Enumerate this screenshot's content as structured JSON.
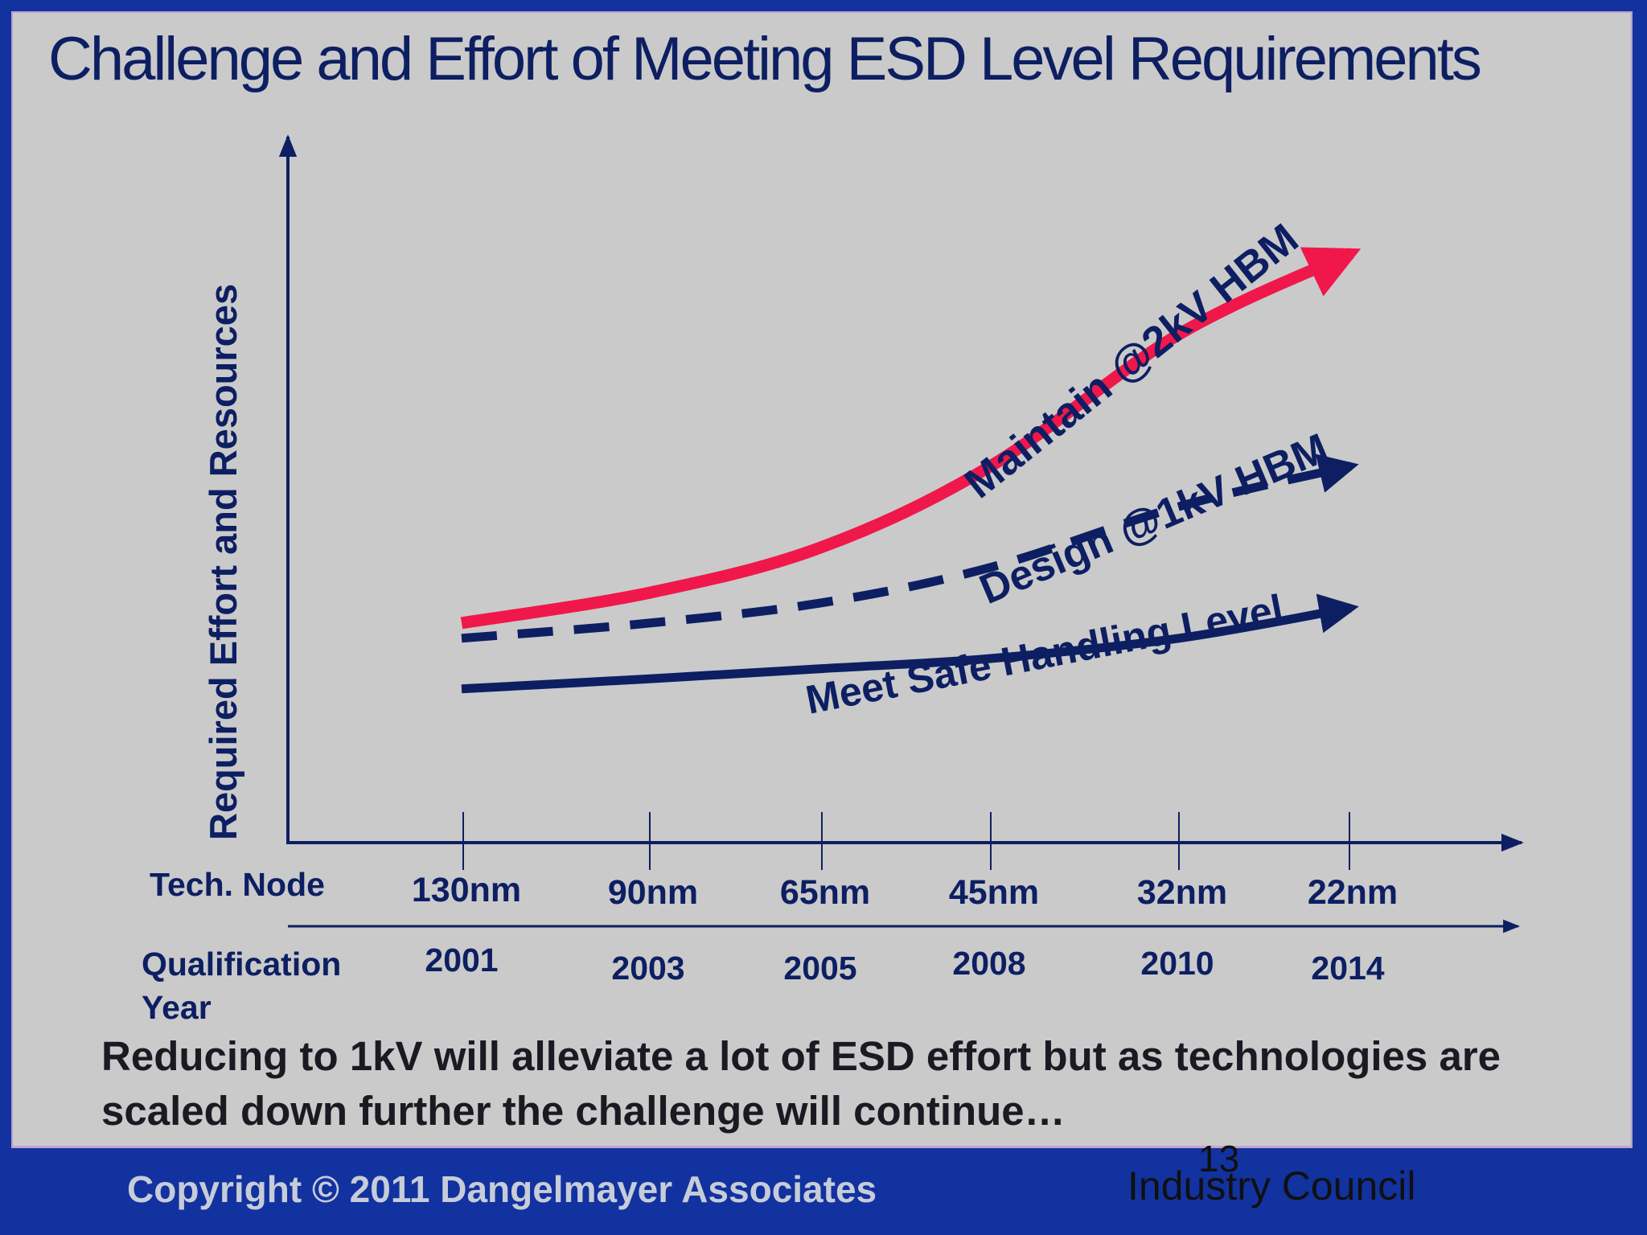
{
  "slide": {
    "title": "Challenge and Effort of Meeting ESD Level Requirements",
    "caption": "Reducing to 1kV will alleviate a lot of ESD effort but as technologies are scaled down further the challenge will continue…",
    "copyright": "Copyright © 2011 Dangelmayer Associates",
    "page_number": "13",
    "footer_right": "Industry Council"
  },
  "colors": {
    "background": "#cacaca",
    "frame": "#1232a0",
    "red_line": "#f0184a",
    "navy": "#0d1f62"
  },
  "chart_data": {
    "type": "line",
    "title": "Challenge and Effort of Meeting ESD Level Requirements",
    "ylabel": "Required Effort and Resources",
    "x_axis_rows": [
      {
        "label": "Tech. Node",
        "ticks": [
          "130nm",
          "90nm",
          "65nm",
          "45nm",
          "32nm",
          "22nm"
        ]
      },
      {
        "label": "Qualification Year",
        "ticks": [
          "2001",
          "2003",
          "2005",
          "2008",
          "2010",
          "2014"
        ]
      }
    ],
    "x": [
      2001,
      2003,
      2005,
      2008,
      2010,
      2014
    ],
    "y_numeric_scale": false,
    "series": [
      {
        "name": "Maintain @2kV HBM",
        "style": "solid",
        "color": "#f0184a",
        "values": [
          0.27,
          0.33,
          0.42,
          0.58,
          0.84,
          1.0
        ]
      },
      {
        "name": "Design @1kV HBM",
        "style": "dashed",
        "color": "#0d1f62",
        "values": [
          0.24,
          0.27,
          0.31,
          0.38,
          0.5,
          0.58
        ]
      },
      {
        "name": "Meet Safe Handling Level",
        "style": "solid",
        "color": "#0d1f62",
        "values": [
          0.14,
          0.16,
          0.18,
          0.2,
          0.24,
          0.3
        ]
      }
    ]
  }
}
